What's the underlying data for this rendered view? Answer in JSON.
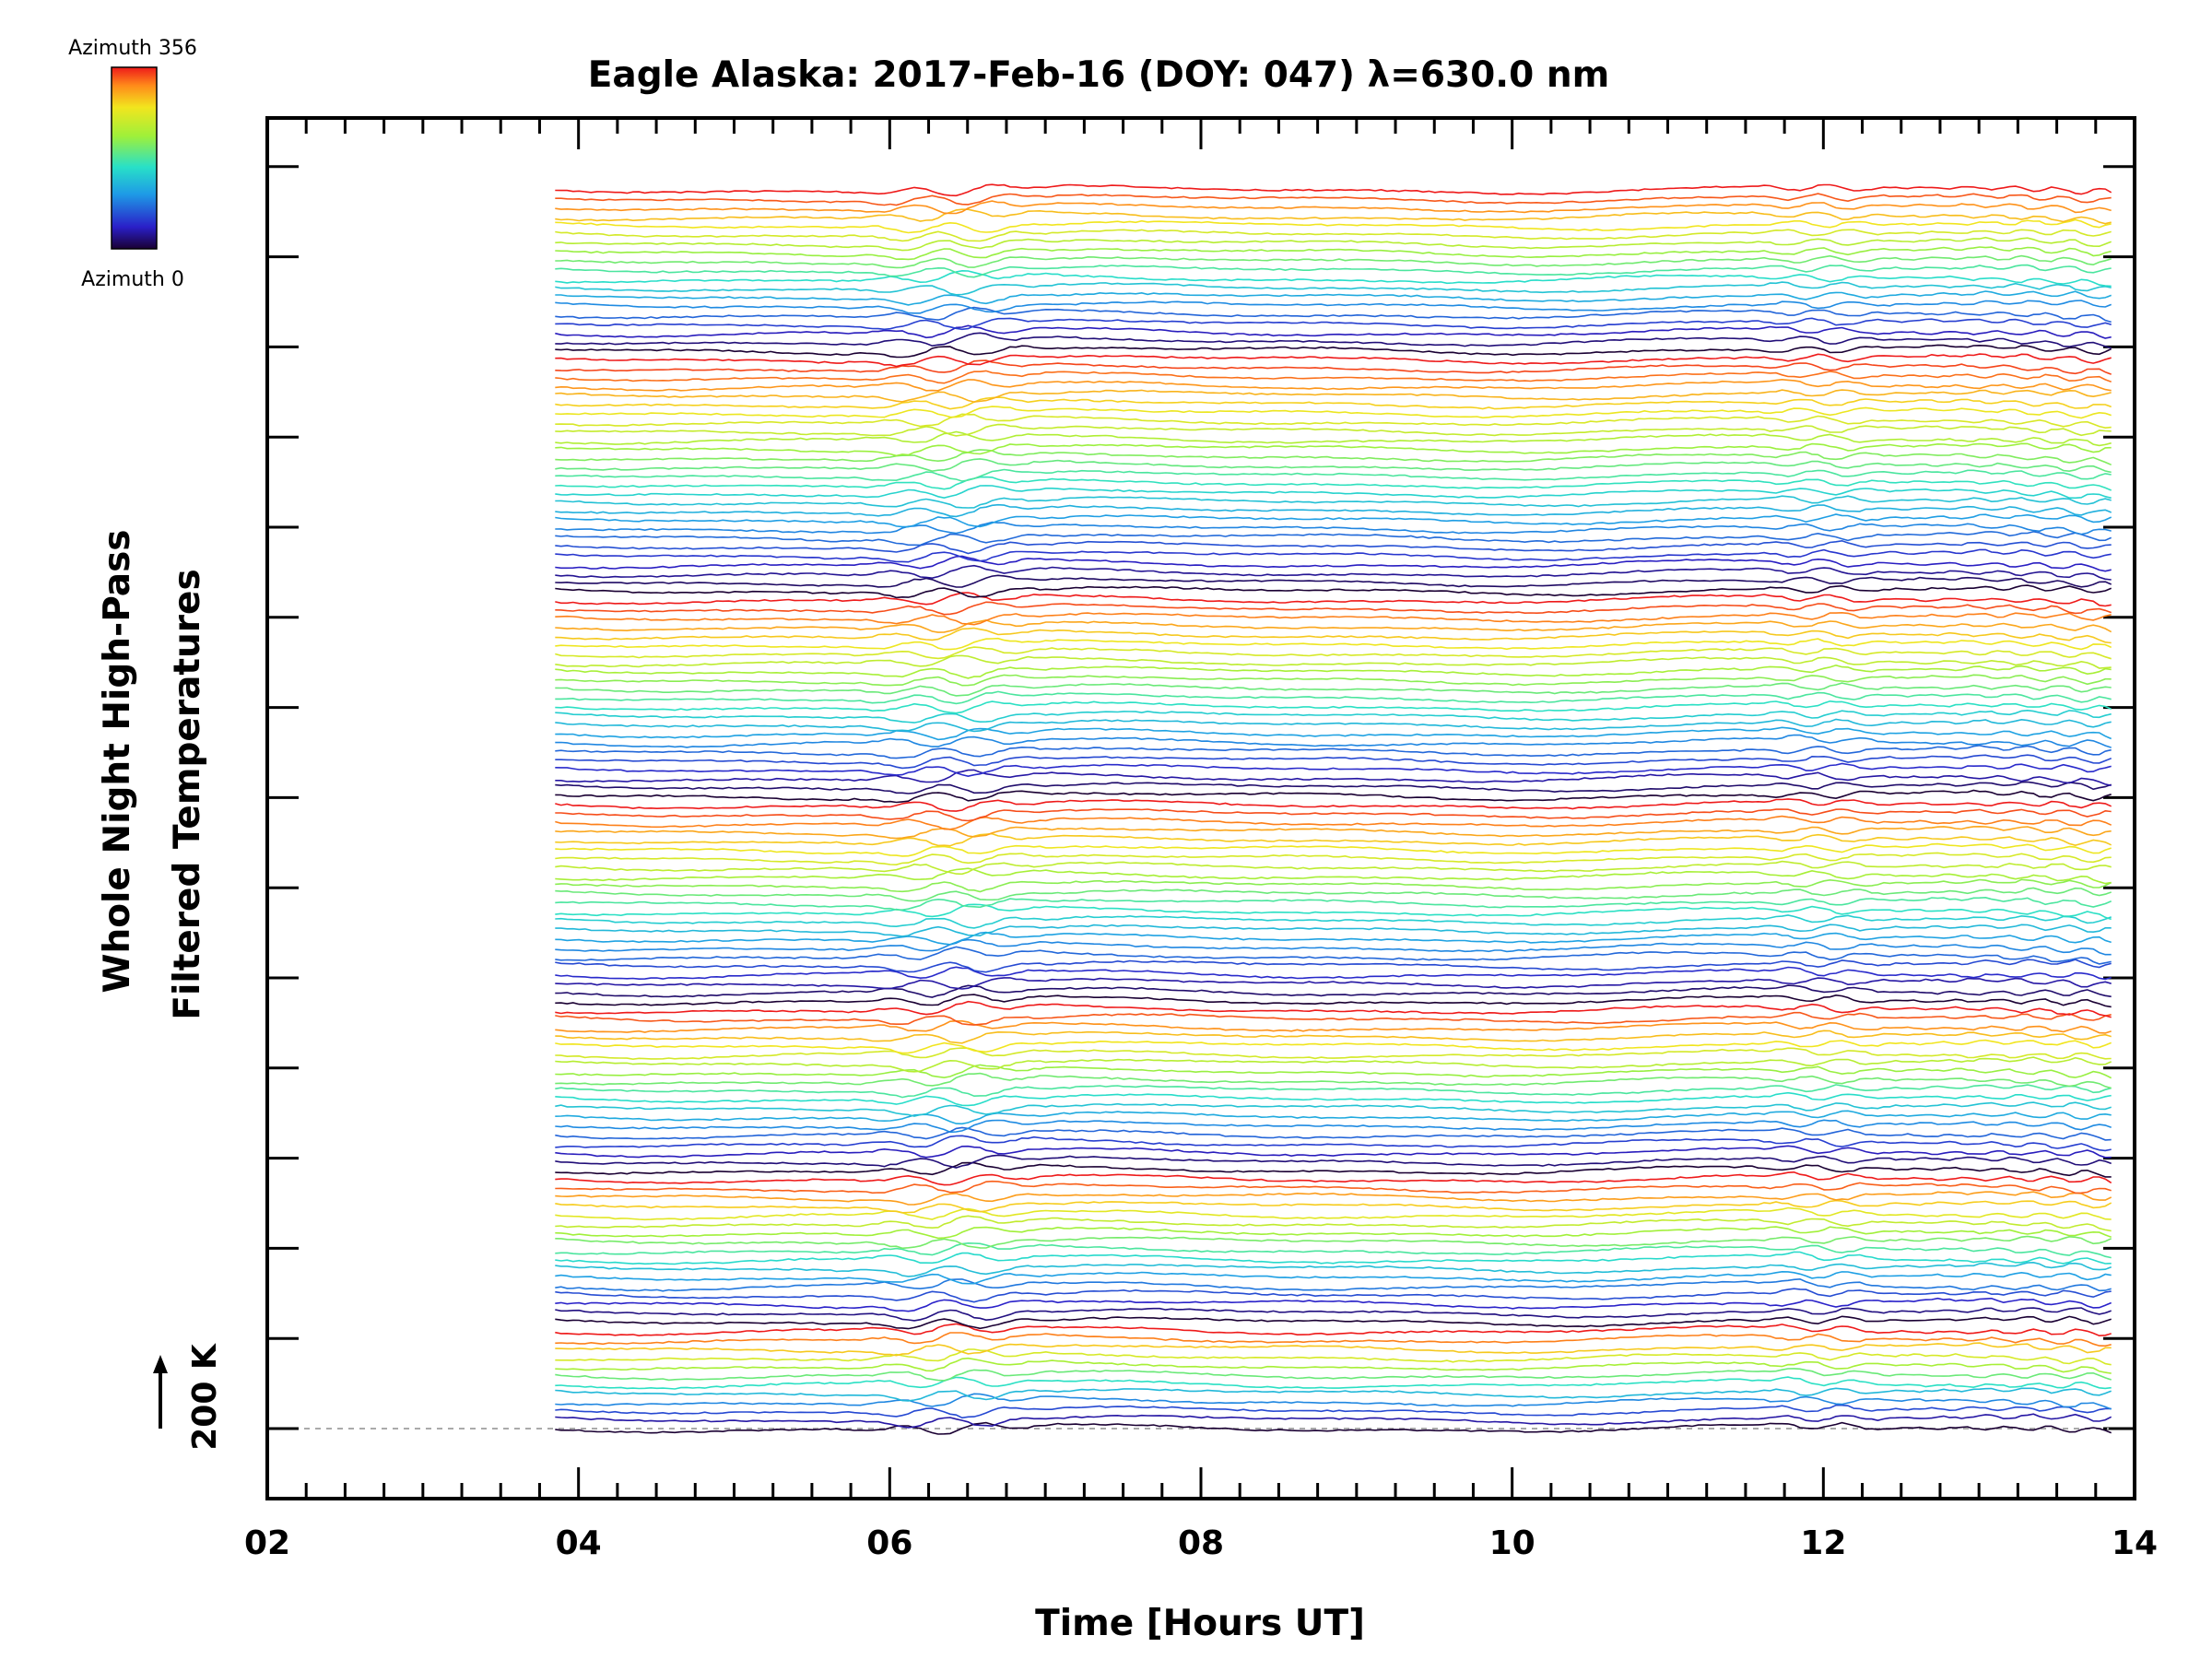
{
  "chart_data": {
    "type": "line",
    "title": "Eagle Alaska: 2017-Feb-16 (DOY: 047) λ=630.0 nm",
    "xlabel": "Time [Hours UT]",
    "ylabel_line1": "Whole Night High-Pass",
    "ylabel_line2": "Filtered Temperatures",
    "xlim": [
      2,
      14
    ],
    "x_tick_labels": [
      "02",
      "04",
      "06",
      "08",
      "10",
      "12",
      "14"
    ],
    "x_tick_values": [
      2,
      4,
      6,
      8,
      10,
      12,
      14
    ],
    "time_range": [
      3.85,
      13.85
    ],
    "trace_count": 140,
    "azimuth_cycles": [
      {
        "start_trace": 0,
        "length": 12
      },
      {
        "start_trace": 12,
        "length": 17
      },
      {
        "start_trace": 29,
        "length": 19
      },
      {
        "start_trace": 48,
        "length": 23
      },
      {
        "start_trace": 71,
        "length": 23
      },
      {
        "start_trace": 94,
        "length": 27
      },
      {
        "start_trace": 121,
        "length": 19
      }
    ],
    "scale_bar": "200 K",
    "colorbar": {
      "top_label": "Azimuth 356",
      "bottom_label": "Azimuth 0",
      "min": 0,
      "max": 356,
      "colormap": "rainbow"
    },
    "grid": false,
    "legend": "colorbar top-left"
  }
}
